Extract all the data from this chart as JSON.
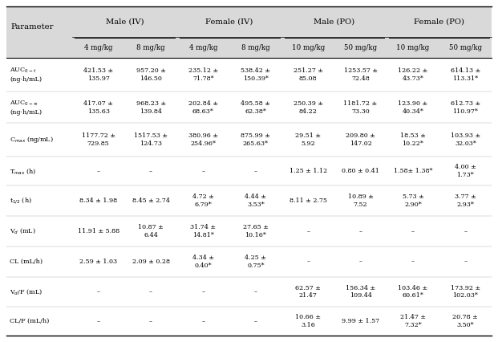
{
  "background_color": "#ffffff",
  "header_bg_color": "#d9d9d9",
  "group_labels": [
    "Male (IV)",
    "Female (IV)",
    "Male (PO)",
    "Female (PO)"
  ],
  "subheaders": [
    "4 mg/kg",
    "8 mg/kg",
    "4 mg/kg",
    "8 mg/kg",
    "10 mg/kg",
    "50 mg/kg",
    "10 mg/kg",
    "50 mg/kg"
  ],
  "param_labels": [
    "AUC$_{0-t}$\n(ng·h/mL)",
    "AUC$_{0-∞}$\n(ng·h/mL)",
    "C$_{max}$ (ng/mL)",
    "T$_{max}$ (h)",
    "t$_{1/2}$ (h)",
    "V$_{d}$ (mL)",
    "CL (mL/h)",
    "V$_{d}$/F (mL)",
    "CL/F (mL/h)"
  ],
  "cell_data": [
    [
      "421.53 ±\n135.97",
      "957.20 ±\n146.50",
      "235.12 ±\n71.78*",
      "538.42 ±\n150.39*",
      "251.27 ±\n85.08",
      "1253.57 ±\n72.48",
      "126.22 ±\n43.73*",
      "614.13 ±\n113.31*"
    ],
    [
      "417.07 ±\n135.63",
      "968.23 ±\n139.84",
      "202.84 ±\n68.63*",
      "495.58 ±\n62.38*",
      "250.39 ±\n84.22",
      "1181.72 ±\n73.30",
      "123.90 ±\n40.34*",
      "612.73 ±\n110.97*"
    ],
    [
      "1177.72 ±\n729.85",
      "1517.53 ±\n124.73",
      "380.96 ±\n254.96*",
      "875.99 ±\n265.63*",
      "29.51 ±\n5.92",
      "209.80 ±\n147.02",
      "18.53 ±\n10.22*",
      "103.93 ±\n32.03*"
    ],
    [
      "–",
      "–",
      "–",
      "–",
      "1.25 ± 1.12",
      "0.80 ± 0.41",
      "1.58± 1.38*",
      "4.00 ±\n1.73*"
    ],
    [
      "8.34 ± 1.98",
      "8.45 ± 2.74",
      "4.72 ±\n6.79*",
      "4.44 ±\n3.53*",
      "8.11 ± 2.75",
      "10.89 ±\n7.52",
      "5.73 ±\n2.90*",
      "3.77 ±\n2.93*"
    ],
    [
      "11.91 ± 5.88",
      "10.87 ±\n6.44",
      "31.74 ±\n14.81*",
      "27.65 ±\n10.16*",
      "–",
      "–",
      "–",
      "–"
    ],
    [
      "2.59 ± 1.03",
      "2.09 ± 0.28",
      "4.34 ±\n0.40*",
      "4.25 ±\n0.75*",
      "–",
      "–",
      "–",
      "–"
    ],
    [
      "–",
      "–",
      "–",
      "–",
      "62.57 ±\n21.47",
      "156.34 ±\n109.44",
      "103.46 ±\n60.61*",
      "173.92 ±\n102.03*"
    ],
    [
      "–",
      "–",
      "–",
      "–",
      "10.66 ±\n3.16",
      "9.99 ± 1.57",
      "21.47 ±\n7.32*",
      "20.78 ±\n3.50*"
    ]
  ],
  "font_size": 5.8,
  "header_font_size": 7.2,
  "sub_font_size": 6.2
}
